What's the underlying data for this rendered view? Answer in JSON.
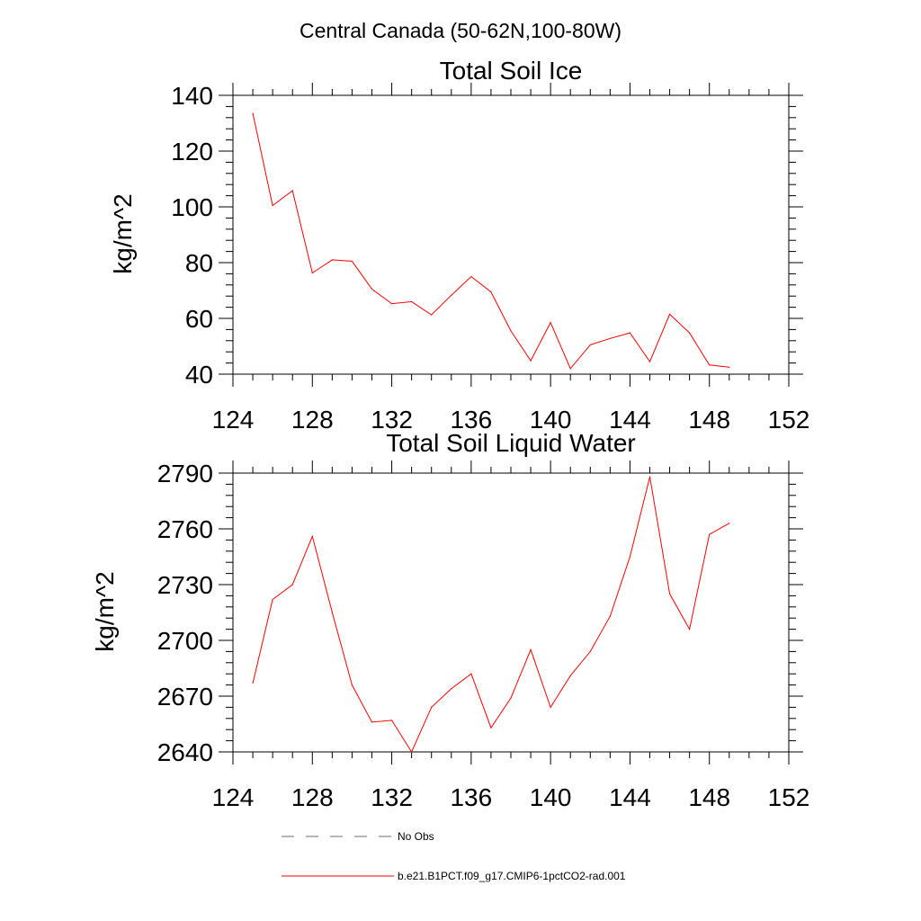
{
  "figure": {
    "title": "Central Canada (50-62N,100-80W)"
  },
  "chart_data": [
    {
      "type": "line",
      "title": "Total Soil Ice",
      "xlabel": "",
      "ylabel": "kg/m^2",
      "xlim": [
        124,
        152
      ],
      "ylim": [
        40,
        140
      ],
      "x_ticks": [
        124,
        128,
        132,
        136,
        140,
        144,
        148,
        152
      ],
      "y_ticks": [
        40,
        60,
        80,
        100,
        120,
        140
      ],
      "series": [
        {
          "name": "b.e21.B1PCT.f09_g17.CMIP6-1pctCO2-rad.001",
          "color": "#ff0000",
          "x": [
            125,
            126,
            127,
            128,
            129,
            130,
            131,
            132,
            133,
            134,
            135,
            136,
            137,
            138,
            139,
            140,
            141,
            142,
            143,
            144,
            145,
            146,
            147,
            148,
            149
          ],
          "y": [
            133.5,
            100.5,
            105.8,
            76.3,
            81.0,
            80.5,
            70.5,
            65.3,
            66.0,
            61.3,
            68.3,
            75.0,
            69.5,
            55.5,
            44.8,
            58.5,
            42.0,
            50.5,
            52.8,
            54.8,
            44.5,
            61.5,
            54.8,
            43.3,
            42.5
          ]
        }
      ]
    },
    {
      "type": "line",
      "title": "Total Soil Liquid Water",
      "xlabel": "",
      "ylabel": "kg/m^2",
      "xlim": [
        124,
        152
      ],
      "ylim": [
        2640,
        2790
      ],
      "x_ticks": [
        124,
        128,
        132,
        136,
        140,
        144,
        148,
        152
      ],
      "y_ticks": [
        2640,
        2670,
        2700,
        2730,
        2760,
        2790
      ],
      "series": [
        {
          "name": "b.e21.B1PCT.f09_g17.CMIP6-1pctCO2-rad.001",
          "color": "#ff0000",
          "x": [
            125,
            126,
            127,
            128,
            129,
            130,
            131,
            132,
            133,
            134,
            135,
            136,
            137,
            138,
            139,
            140,
            141,
            142,
            143,
            144,
            145,
            146,
            147,
            148,
            149
          ],
          "y": [
            2677,
            2722,
            2730,
            2756,
            2715,
            2676,
            2656,
            2657,
            2640,
            2664,
            2674,
            2682,
            2653,
            2669,
            2695,
            2664,
            2681,
            2694,
            2713,
            2745,
            2788,
            2725,
            2706,
            2757,
            2763
          ]
        }
      ]
    }
  ],
  "legend": {
    "entries": [
      {
        "label": "No Obs",
        "style": "dashed",
        "color": "#6a6a9a"
      },
      {
        "label": "b.e21.B1PCT.f09_g17.CMIP6-1pctCO2-rad.001",
        "style": "solid",
        "color": "#ff0000"
      }
    ]
  }
}
